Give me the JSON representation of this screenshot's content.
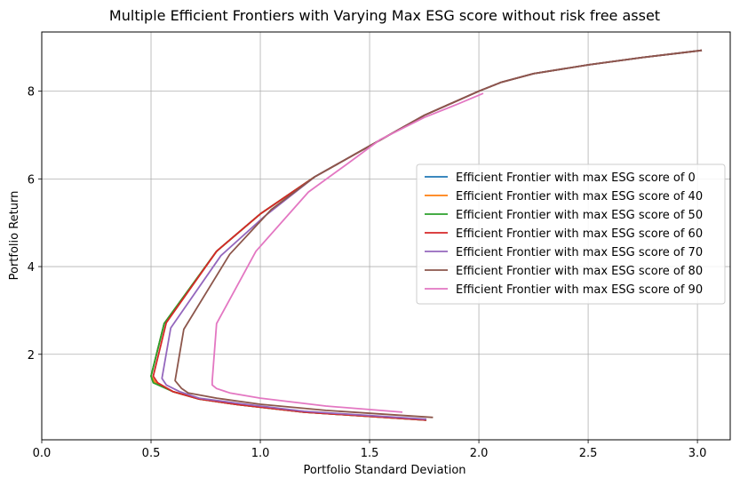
{
  "chart_data": {
    "type": "line",
    "title": "Multiple Efficient Frontiers with Varying Max ESG score without risk free asset",
    "xlabel": "Portfolio Standard Deviation",
    "ylabel": "Portfolio Return",
    "xlim": [
      0.0,
      3.15
    ],
    "ylim": [
      0.05,
      9.35
    ],
    "xticks": [
      "0.0",
      "0.5",
      "1.0",
      "1.5",
      "2.0",
      "2.5",
      "3.0"
    ],
    "yticks": [
      "2",
      "4",
      "6",
      "8"
    ],
    "grid": true,
    "legend_position": "center-right",
    "series": [
      {
        "name": "Efficient Frontier with max ESG score of 0",
        "color": "#1f77b4",
        "points": [
          [
            1.76,
            0.5
          ],
          [
            1.2,
            0.68
          ],
          [
            0.9,
            0.85
          ],
          [
            0.72,
            0.98
          ],
          [
            0.6,
            1.15
          ],
          [
            0.52,
            1.35
          ],
          [
            0.5,
            1.5
          ],
          [
            0.56,
            2.7
          ],
          [
            0.8,
            4.35
          ],
          [
            1.0,
            5.2
          ],
          [
            1.25,
            6.05
          ],
          [
            1.5,
            6.75
          ],
          [
            1.75,
            7.45
          ],
          [
            2.0,
            8.0
          ],
          [
            2.1,
            8.2
          ],
          [
            2.25,
            8.4
          ],
          [
            2.5,
            8.6
          ],
          [
            2.75,
            8.77
          ],
          [
            3.02,
            8.93
          ]
        ]
      },
      {
        "name": "Efficient Frontier with max ESG score of 40",
        "color": "#ff7f0e",
        "points": [
          [
            1.76,
            0.5
          ],
          [
            1.2,
            0.68
          ],
          [
            0.9,
            0.85
          ],
          [
            0.72,
            0.98
          ],
          [
            0.6,
            1.15
          ],
          [
            0.52,
            1.35
          ],
          [
            0.5,
            1.5
          ],
          [
            0.56,
            2.7
          ],
          [
            0.8,
            4.35
          ],
          [
            1.0,
            5.2
          ],
          [
            1.25,
            6.05
          ],
          [
            1.5,
            6.75
          ],
          [
            1.75,
            7.45
          ],
          [
            2.0,
            8.0
          ],
          [
            2.1,
            8.2
          ],
          [
            2.25,
            8.4
          ],
          [
            2.5,
            8.6
          ],
          [
            2.75,
            8.77
          ],
          [
            3.02,
            8.93
          ]
        ]
      },
      {
        "name": "Efficient Frontier with max ESG score of 50",
        "color": "#2ca02c",
        "points": [
          [
            1.76,
            0.5
          ],
          [
            1.2,
            0.68
          ],
          [
            0.9,
            0.85
          ],
          [
            0.72,
            0.98
          ],
          [
            0.6,
            1.15
          ],
          [
            0.51,
            1.35
          ],
          [
            0.5,
            1.5
          ],
          [
            0.56,
            2.7
          ],
          [
            0.8,
            4.35
          ],
          [
            1.0,
            5.2
          ],
          [
            1.25,
            6.05
          ],
          [
            1.5,
            6.75
          ],
          [
            1.75,
            7.45
          ],
          [
            2.0,
            8.0
          ],
          [
            2.1,
            8.2
          ],
          [
            2.25,
            8.4
          ],
          [
            2.5,
            8.6
          ],
          [
            2.75,
            8.77
          ],
          [
            3.02,
            8.93
          ]
        ]
      },
      {
        "name": "Efficient Frontier with max ESG score of 60",
        "color": "#d62728",
        "points": [
          [
            1.76,
            0.5
          ],
          [
            1.2,
            0.68
          ],
          [
            0.9,
            0.85
          ],
          [
            0.72,
            0.98
          ],
          [
            0.6,
            1.15
          ],
          [
            0.53,
            1.35
          ],
          [
            0.51,
            1.5
          ],
          [
            0.57,
            2.72
          ],
          [
            0.8,
            4.35
          ],
          [
            1.0,
            5.2
          ],
          [
            1.25,
            6.05
          ],
          [
            1.5,
            6.75
          ],
          [
            1.75,
            7.45
          ],
          [
            2.0,
            8.0
          ],
          [
            2.1,
            8.2
          ],
          [
            2.25,
            8.4
          ],
          [
            2.5,
            8.6
          ],
          [
            2.75,
            8.77
          ],
          [
            3.02,
            8.93
          ]
        ]
      },
      {
        "name": "Efficient Frontier with max ESG score of 70",
        "color": "#9467bd",
        "points": [
          [
            1.76,
            0.52
          ],
          [
            1.2,
            0.7
          ],
          [
            0.9,
            0.88
          ],
          [
            0.72,
            1.0
          ],
          [
            0.63,
            1.15
          ],
          [
            0.57,
            1.3
          ],
          [
            0.55,
            1.45
          ],
          [
            0.59,
            2.6
          ],
          [
            0.82,
            4.25
          ],
          [
            1.02,
            5.15
          ],
          [
            1.25,
            6.05
          ],
          [
            1.5,
            6.75
          ],
          [
            1.75,
            7.45
          ],
          [
            2.0,
            8.0
          ],
          [
            2.1,
            8.2
          ],
          [
            2.25,
            8.4
          ],
          [
            2.5,
            8.6
          ],
          [
            2.75,
            8.77
          ],
          [
            3.02,
            8.93
          ]
        ]
      },
      {
        "name": "Efficient Frontier with max ESG score of 80",
        "color": "#8c564b",
        "points": [
          [
            1.79,
            0.56
          ],
          [
            1.3,
            0.72
          ],
          [
            1.0,
            0.86
          ],
          [
            0.8,
            1.0
          ],
          [
            0.67,
            1.12
          ],
          [
            0.64,
            1.22
          ],
          [
            0.61,
            1.4
          ],
          [
            0.65,
            2.57
          ],
          [
            0.86,
            4.28
          ],
          [
            1.05,
            5.3
          ],
          [
            1.25,
            6.05
          ],
          [
            1.5,
            6.75
          ],
          [
            1.75,
            7.45
          ],
          [
            2.0,
            8.0
          ],
          [
            2.1,
            8.2
          ],
          [
            2.25,
            8.4
          ],
          [
            2.5,
            8.6
          ],
          [
            2.75,
            8.77
          ],
          [
            3.02,
            8.93
          ]
        ]
      },
      {
        "name": "Efficient Frontier with max ESG score of 90",
        "color": "#e377c2",
        "points": [
          [
            1.65,
            0.68
          ],
          [
            1.3,
            0.82
          ],
          [
            1.0,
            1.0
          ],
          [
            0.86,
            1.12
          ],
          [
            0.8,
            1.22
          ],
          [
            0.78,
            1.3
          ],
          [
            0.78,
            1.4
          ],
          [
            0.8,
            2.7
          ],
          [
            0.98,
            4.35
          ],
          [
            1.22,
            5.7
          ],
          [
            1.4,
            6.35
          ],
          [
            1.55,
            6.9
          ],
          [
            1.75,
            7.4
          ],
          [
            1.9,
            7.7
          ],
          [
            2.02,
            7.95
          ]
        ]
      }
    ]
  }
}
